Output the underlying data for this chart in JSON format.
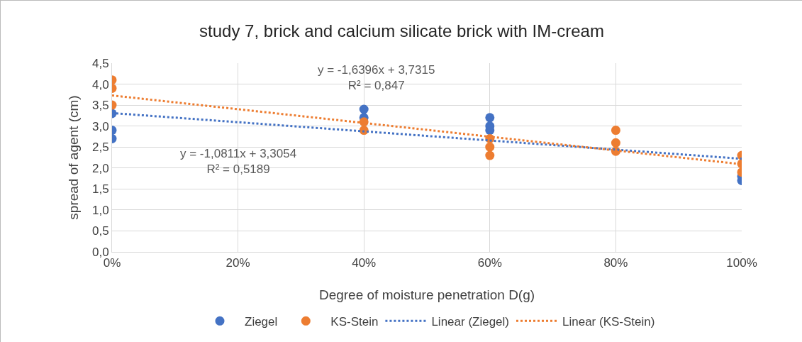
{
  "chart_data": {
    "type": "scatter",
    "title": "study 7, brick and calcium silicate brick with IM-cream",
    "xlabel": "Degree of moisture penetration D(g)",
    "ylabel": "spread of agent (cm)",
    "series": [
      {
        "name": "Ziegel",
        "color": "#4472c4",
        "marker": "circle",
        "x": [
          0,
          0,
          0,
          0.4,
          0.4,
          0.6,
          0.6,
          0.6,
          1,
          1
        ],
        "values": [
          3.3,
          2.9,
          2.7,
          3.4,
          3.2,
          3.2,
          3.0,
          2.9,
          1.7,
          1.8
        ]
      },
      {
        "name": "KS-Stein",
        "color": "#ed7d31",
        "marker": "circle",
        "x": [
          0,
          0,
          0,
          0.4,
          0.4,
          0.6,
          0.6,
          0.6,
          0.8,
          0.8,
          0.8,
          1,
          1,
          1
        ],
        "values": [
          4.1,
          3.9,
          3.5,
          3.1,
          2.9,
          2.7,
          2.5,
          2.3,
          2.9,
          2.6,
          2.4,
          2.3,
          2.1,
          1.9
        ]
      },
      {
        "name": "Linear (Ziegel)",
        "type": "line",
        "color": "#4472c4",
        "marker": "none",
        "line_style": "dotted",
        "x": [
          0,
          1
        ],
        "values": [
          3.31,
          2.22
        ]
      },
      {
        "name": "Linear (KS-Stein)",
        "type": "line",
        "color": "#ed7d31",
        "marker": "none",
        "line_style": "dotted",
        "x": [
          0,
          1
        ],
        "values": [
          3.73,
          2.09
        ]
      }
    ],
    "annotations": [
      "y = -1,6396x + 3,7315\nR² = 0,847",
      "y = -1,0811x + 3,3054\nR² = 0,5189"
    ],
    "xlim": [
      0,
      1
    ],
    "xticks": [
      {
        "value": 0,
        "label": "0%"
      },
      {
        "value": 0.2,
        "label": "20%"
      },
      {
        "value": 0.4,
        "label": "40%"
      },
      {
        "value": 0.6,
        "label": "60%"
      },
      {
        "value": 0.8,
        "label": "80%"
      },
      {
        "value": 1,
        "label": "100%"
      }
    ],
    "ylim": [
      0,
      4.5
    ],
    "yticks": [
      {
        "value": 0,
        "label": "0,0"
      },
      {
        "value": 0.5,
        "label": "0,5"
      },
      {
        "value": 1,
        "label": "1,0"
      },
      {
        "value": 1.5,
        "label": "1,5"
      },
      {
        "value": 2,
        "label": "2,0"
      },
      {
        "value": 2.5,
        "label": "2,5"
      },
      {
        "value": 3,
        "label": "3,0"
      },
      {
        "value": 3.5,
        "label": "3,5"
      },
      {
        "value": 4,
        "label": "4,0"
      },
      {
        "value": 4.5,
        "label": "4,5"
      }
    ],
    "grid": true,
    "legend": "bottom"
  }
}
